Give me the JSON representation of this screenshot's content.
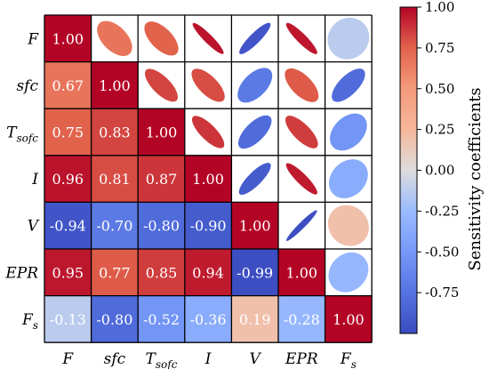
{
  "chart_data": {
    "type": "heatmap",
    "title": "",
    "variables": [
      "F",
      "sfc",
      "Tsofc",
      "I",
      "V",
      "EPR",
      "Fs"
    ],
    "variable_labels": [
      {
        "base": "F",
        "sub": ""
      },
      {
        "base": "sfc",
        "sub": ""
      },
      {
        "base": "T",
        "sub": "sofc"
      },
      {
        "base": "I",
        "sub": ""
      },
      {
        "base": "V",
        "sub": ""
      },
      {
        "base": "EPR",
        "sub": ""
      },
      {
        "base": "F",
        "sub": "s"
      }
    ],
    "matrix": [
      [
        1.0,
        0.67,
        0.75,
        0.96,
        -0.94,
        0.95,
        -0.13
      ],
      [
        0.67,
        1.0,
        0.83,
        0.81,
        -0.7,
        0.77,
        -0.8
      ],
      [
        0.75,
        0.83,
        1.0,
        0.87,
        -0.8,
        0.85,
        -0.52
      ],
      [
        0.96,
        0.81,
        0.87,
        1.0,
        -0.9,
        0.94,
        -0.36
      ],
      [
        -0.94,
        -0.7,
        -0.8,
        -0.9,
        1.0,
        -0.99,
        0.19
      ],
      [
        0.95,
        0.77,
        0.85,
        0.94,
        -0.99,
        1.0,
        -0.28
      ],
      [
        -0.13,
        -0.8,
        -0.52,
        -0.36,
        0.19,
        -0.28,
        1.0
      ]
    ],
    "lower_triangle": "numbers",
    "upper_triangle": "ellipses",
    "colormap": "coolwarm",
    "vlim": [
      -1.0,
      1.0
    ],
    "colorbar": {
      "ticks": [
        "1.00",
        "0.75",
        "0.50",
        "0.25",
        "0.00",
        "-0.25",
        "-0.50",
        "-0.75"
      ],
      "tick_values": [
        1.0,
        0.75,
        0.5,
        0.25,
        0.0,
        -0.25,
        -0.5,
        -0.75
      ],
      "label": "Sensitivity coefficients"
    },
    "grid": true
  }
}
